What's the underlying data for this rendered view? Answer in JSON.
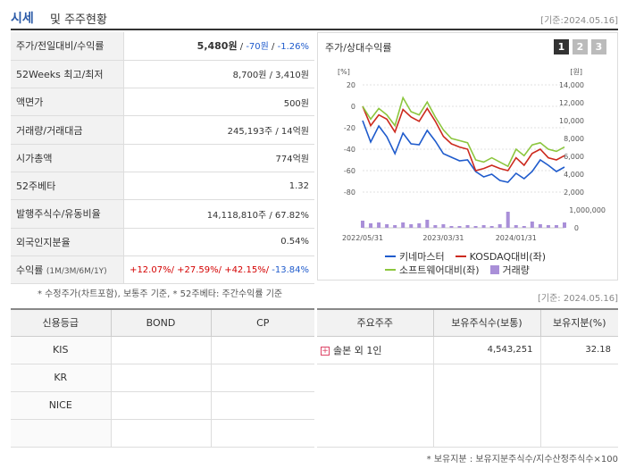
{
  "header": {
    "title1": "시세",
    "title2": "및 주주현황",
    "date": "[기준:2024.05.16]"
  },
  "rows": [
    {
      "label": "주가/전일대비/수익률",
      "price": "5,480원",
      "sep1": " / ",
      "change": "-70원",
      "sep2": " / ",
      "rate": "-1.26%"
    },
    {
      "label": "52Weeks 최고/최저",
      "value": "8,700원 / 3,410원"
    },
    {
      "label": "액면가",
      "value": "500원"
    },
    {
      "label": "거래량/거래대금",
      "value": "245,193주 / 14억원"
    },
    {
      "label": "시가총액",
      "value": "774억원"
    },
    {
      "label": "52주베타",
      "value": "1.32"
    },
    {
      "label": "발행주식수/유동비율",
      "value": "14,118,810주 / 67.82%"
    },
    {
      "label": "외국인지분율",
      "value": "0.54%"
    }
  ],
  "returns": {
    "label": "수익률",
    "sub": "(1M/3M/6M/1Y)",
    "r1": "+12.07%/",
    "r2": " +27.59%/",
    "r3": " +42.15%/",
    "r4": " -13.84%"
  },
  "note1": "* 수정주가(차트포함), 보통주 기준, * 52주베타: 주간수익률 기준",
  "note2": "[기준: 2024.05.16]",
  "chart": {
    "title": "주가/상대수익률",
    "tabs": [
      "1",
      "2",
      "3"
    ],
    "left_unit": "[%]",
    "right_unit": "[원]",
    "legend": [
      "키네마스터",
      "KOSDAQ대비(좌)",
      "소프트웨어대비(좌)",
      "거래량"
    ]
  },
  "chart_data": {
    "type": "line",
    "x_ticks": [
      "2022/05/31",
      "2023/03/31",
      "2024/01/31"
    ],
    "left_axis": {
      "ticks": [
        20,
        0,
        -20,
        -40,
        -60,
        -80
      ],
      "range": [
        -80,
        20
      ]
    },
    "right_axis": {
      "ticks": [
        "14,000",
        "12,000",
        "10,000",
        "8,000",
        "6,000",
        "4,000",
        "2,000"
      ],
      "range": [
        2000,
        14000
      ]
    },
    "volume_axis": {
      "ticks": [
        "1,000,000",
        "0"
      ]
    },
    "colors": {
      "kinemaster": "#1f5bcc",
      "kosdaq": "#cc2a1e",
      "software": "#8cc63e",
      "volume": "#a98fd8"
    },
    "series": [
      {
        "name": "키네마스터",
        "values": [
          10000,
          7600,
          9400,
          8200,
          6300,
          8600,
          7400,
          7300,
          8900,
          7700,
          6300,
          5900,
          5500,
          5600,
          4300,
          3700,
          4000,
          3300,
          3100,
          4100,
          3500,
          4300,
          5600,
          5000,
          4300,
          4800
        ]
      },
      {
        "name": "KOSDAQ대비(좌)",
        "values": [
          0,
          -18,
          -8,
          -12,
          -24,
          -3,
          -10,
          -14,
          -2,
          -14,
          -28,
          -35,
          -38,
          -40,
          -60,
          -58,
          -55,
          -58,
          -60,
          -48,
          -55,
          -44,
          -40,
          -48,
          -50,
          -46
        ]
      },
      {
        "name": "소프트웨어대비(좌)",
        "values": [
          0,
          -12,
          -2,
          -8,
          -18,
          8,
          -5,
          -8,
          4,
          -10,
          -22,
          -30,
          -32,
          -34,
          -50,
          -52,
          -48,
          -52,
          -56,
          -40,
          -46,
          -36,
          -34,
          -40,
          -42,
          -38
        ]
      }
    ],
    "volume": [
      40,
      25,
      30,
      20,
      15,
      30,
      20,
      25,
      45,
      15,
      20,
      10,
      10,
      15,
      10,
      15,
      10,
      20,
      90,
      15,
      10,
      35,
      20,
      15,
      15,
      30
    ]
  },
  "credit": {
    "headers": [
      "신용등급",
      "BOND",
      "CP"
    ],
    "rows": [
      [
        "KIS",
        "",
        ""
      ],
      [
        "KR",
        "",
        ""
      ],
      [
        "NICE",
        "",
        ""
      ],
      [
        "",
        "",
        ""
      ]
    ]
  },
  "shareholders": {
    "headers": [
      "주요주주",
      "보유주식수(보통)",
      "보유지분(%)"
    ],
    "rows": [
      [
        "솔본 외 1인",
        "4,543,251",
        "32.18"
      ]
    ]
  },
  "note3": "* 보유지분 : 보유지분주식수/지수산정주식수×100"
}
